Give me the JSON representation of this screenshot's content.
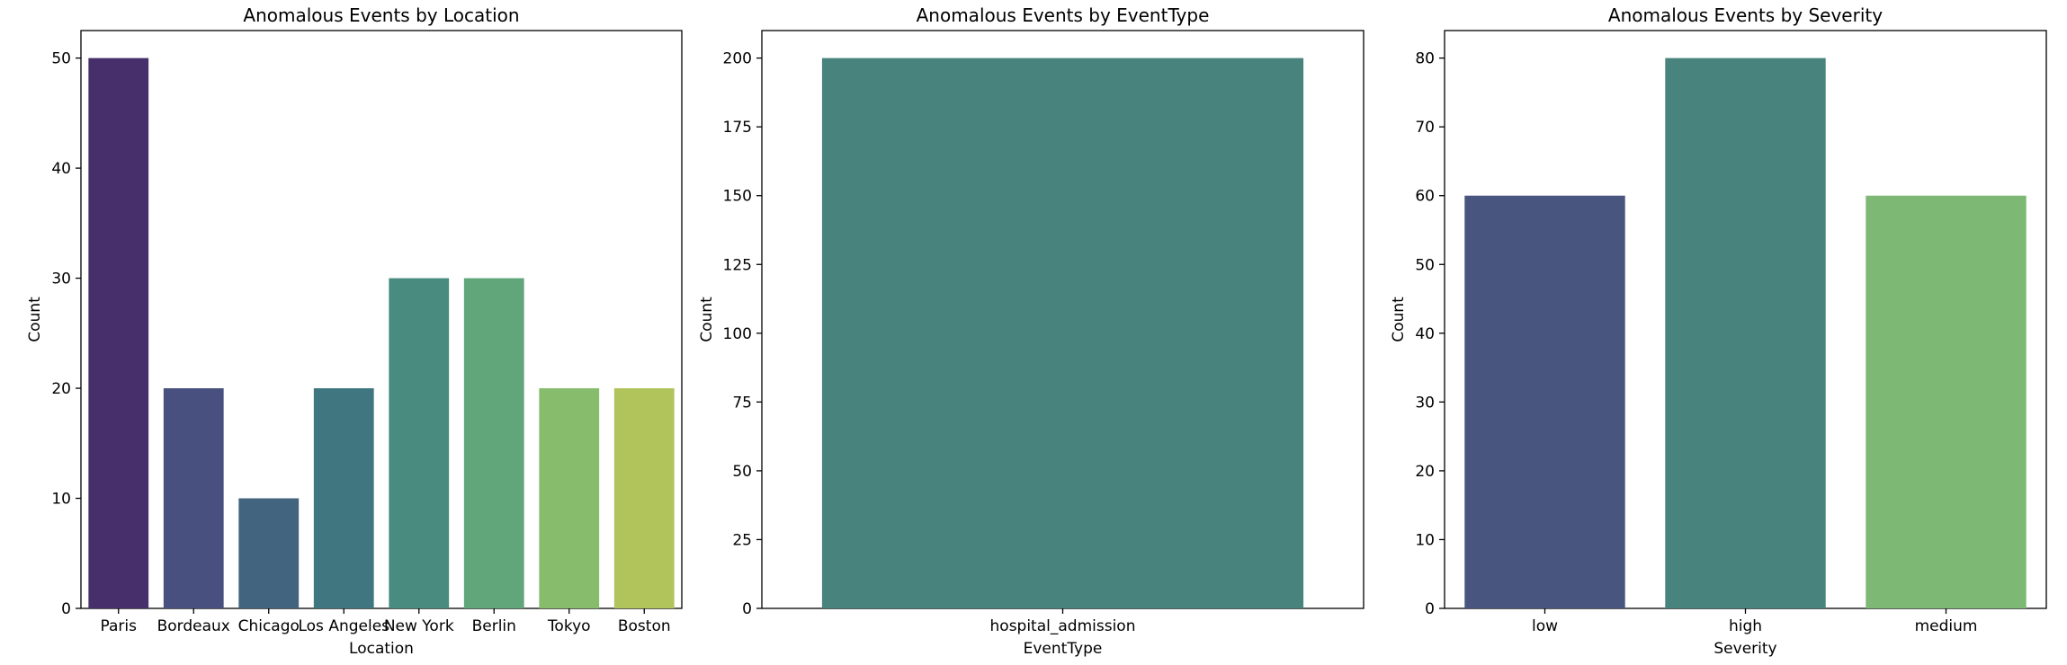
{
  "chart_data": [
    {
      "type": "bar",
      "title": "Anomalous Events by Location",
      "xlabel": "Location",
      "ylabel": "Count",
      "categories": [
        "Paris",
        "Bordeaux",
        "Chicago",
        "Los Angeles",
        "New York",
        "Berlin",
        "Tokyo",
        "Boston"
      ],
      "values": [
        50,
        20,
        10,
        20,
        30,
        30,
        20,
        20
      ],
      "colors": [
        "#472f6b",
        "#48507f",
        "#42647f",
        "#40767f",
        "#4a8b7f",
        "#60a67a",
        "#88bc6d",
        "#b1c45b"
      ],
      "ylim": [
        0,
        52.5
      ],
      "yticks": [
        0,
        10,
        20,
        30,
        40,
        50
      ],
      "grid": false
    },
    {
      "type": "bar",
      "title": "Anomalous Events by EventType",
      "xlabel": "EventType",
      "ylabel": "Count",
      "categories": [
        "hospital_admission"
      ],
      "values": [
        200
      ],
      "colors": [
        "#48837e"
      ],
      "ylim": [
        0,
        210
      ],
      "yticks": [
        0,
        25,
        50,
        75,
        100,
        125,
        150,
        175,
        200
      ],
      "grid": false
    },
    {
      "type": "bar",
      "title": "Anomalous Events by Severity",
      "xlabel": "Severity",
      "ylabel": "Count",
      "categories": [
        "low",
        "high",
        "medium"
      ],
      "values": [
        60,
        80,
        60
      ],
      "colors": [
        "#48557e",
        "#48837e",
        "#7db874"
      ],
      "ylim": [
        0,
        84
      ],
      "yticks": [
        0,
        10,
        20,
        30,
        40,
        50,
        60,
        70,
        80
      ],
      "grid": false
    }
  ]
}
